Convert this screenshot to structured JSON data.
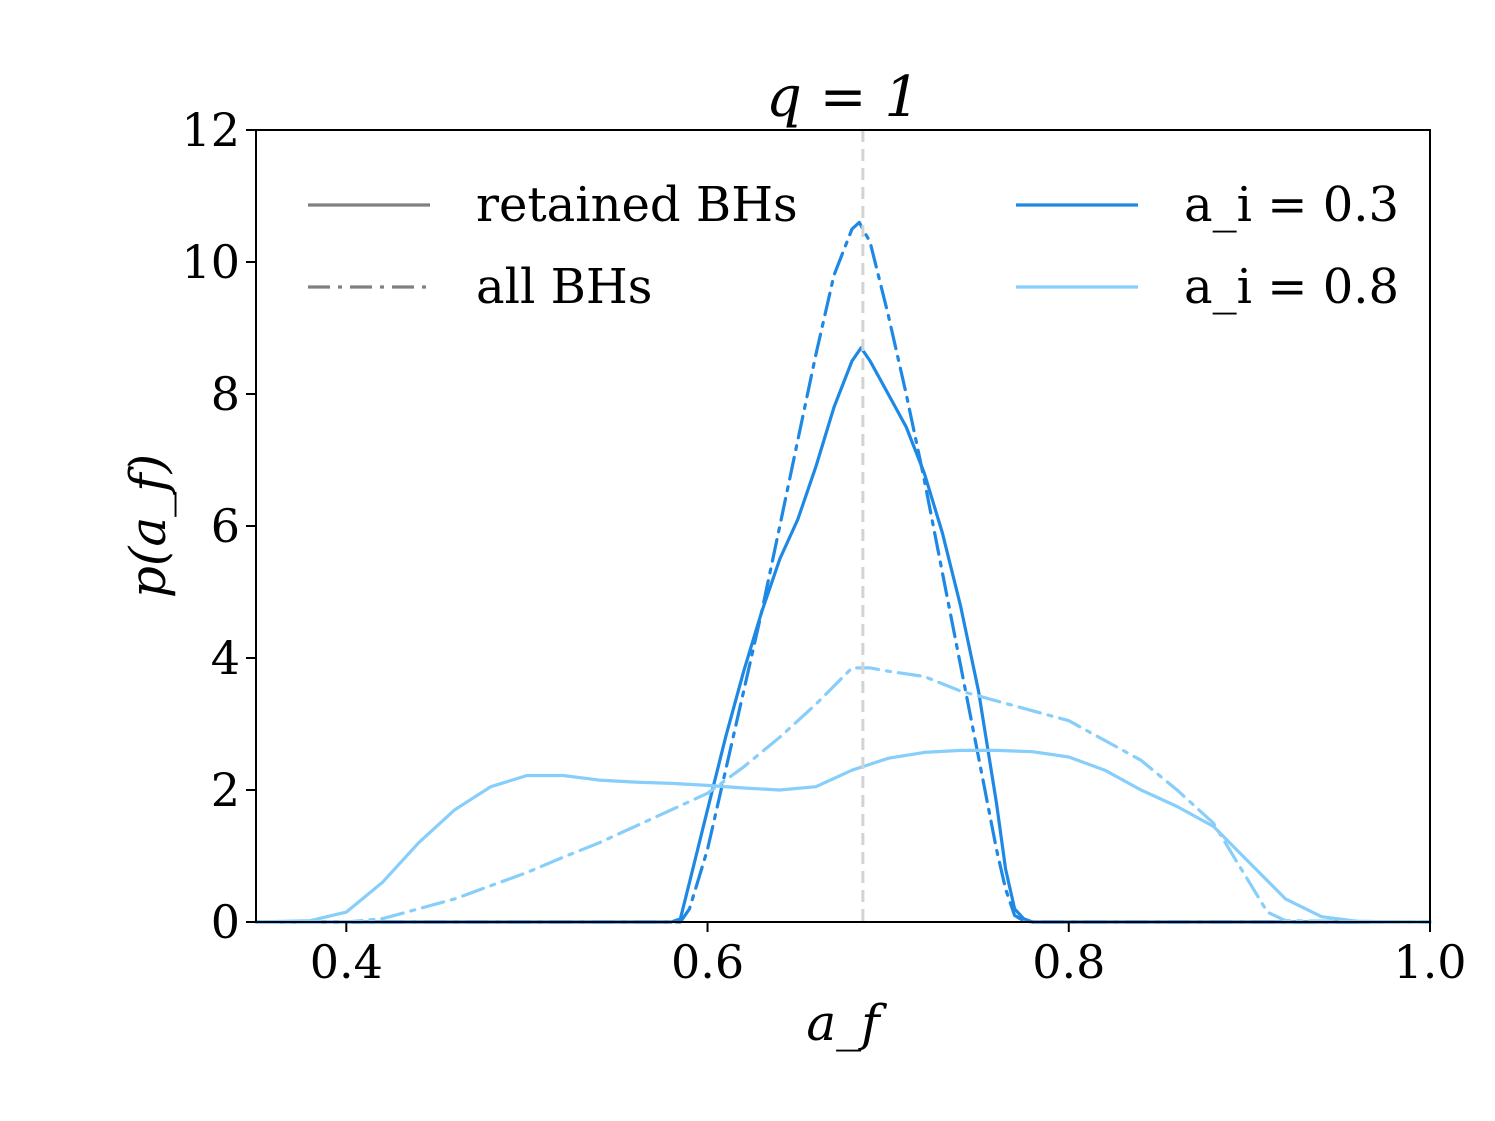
{
  "chart_data": {
    "type": "line",
    "title": "q = 1",
    "xlabel": "a_f",
    "ylabel": "p(a_f)",
    "xlim": [
      0.35,
      1.0
    ],
    "ylim": [
      0,
      12
    ],
    "xticks": [
      0.4,
      0.6,
      0.8,
      1.0
    ],
    "xtick_labels": [
      "0.4",
      "0.6",
      "0.8",
      "1.0"
    ],
    "yticks": [
      0,
      2,
      4,
      6,
      8,
      10,
      12
    ],
    "ytick_labels": [
      "0",
      "2",
      "4",
      "6",
      "8",
      "10",
      "12"
    ],
    "grid": false,
    "reference_line": {
      "x": 0.686,
      "style": "dashed",
      "color": "#d3d3d3"
    },
    "legend_style": {
      "position": "top-left",
      "entries": [
        {
          "label": "retained BHs",
          "linestyle": "solid",
          "color": "#808080"
        },
        {
          "label": "all BHs",
          "linestyle": "dashdot",
          "color": "#808080"
        }
      ]
    },
    "legend_color": {
      "position": "top-right",
      "entries": [
        {
          "label": "a_i = 0.3",
          "color": "#1E88E5"
        },
        {
          "label": "a_i = 0.8",
          "color": "#87CEFA"
        }
      ]
    },
    "series": [
      {
        "name": "a_i = 0.3 retained BHs",
        "color": "#1E88E5",
        "linestyle": "solid",
        "x": [
          0.35,
          0.58,
          0.585,
          0.59,
          0.6,
          0.61,
          0.62,
          0.63,
          0.64,
          0.65,
          0.66,
          0.67,
          0.68,
          0.685,
          0.69,
          0.7,
          0.71,
          0.72,
          0.73,
          0.74,
          0.75,
          0.76,
          0.765,
          0.77,
          0.775,
          0.78,
          0.79,
          1.0
        ],
        "y": [
          0,
          0,
          0.05,
          0.6,
          1.7,
          2.8,
          3.8,
          4.7,
          5.5,
          6.1,
          6.9,
          7.8,
          8.5,
          8.7,
          8.5,
          8.0,
          7.5,
          6.8,
          5.9,
          4.8,
          3.5,
          1.8,
          0.8,
          0.2,
          0.05,
          0,
          0,
          0
        ]
      },
      {
        "name": "a_i = 0.3 all BHs",
        "color": "#1E88E5",
        "linestyle": "dashdot",
        "x": [
          0.35,
          0.585,
          0.59,
          0.6,
          0.61,
          0.62,
          0.63,
          0.64,
          0.65,
          0.66,
          0.67,
          0.68,
          0.684,
          0.69,
          0.7,
          0.71,
          0.72,
          0.73,
          0.74,
          0.75,
          0.76,
          0.765,
          0.77,
          0.775,
          0.78,
          1.0
        ],
        "y": [
          0,
          0,
          0.2,
          1.1,
          2.3,
          3.5,
          4.7,
          6.0,
          7.3,
          8.6,
          9.8,
          10.5,
          10.6,
          10.3,
          9.2,
          8.0,
          6.7,
          5.3,
          3.9,
          2.5,
          1.1,
          0.5,
          0.1,
          0.02,
          0,
          0
        ]
      },
      {
        "name": "a_i = 0.8 retained BHs",
        "color": "#87CEFA",
        "linestyle": "solid",
        "x": [
          0.35,
          0.38,
          0.4,
          0.42,
          0.44,
          0.46,
          0.48,
          0.5,
          0.52,
          0.54,
          0.56,
          0.58,
          0.6,
          0.62,
          0.64,
          0.66,
          0.68,
          0.7,
          0.72,
          0.74,
          0.76,
          0.78,
          0.8,
          0.82,
          0.84,
          0.86,
          0.88,
          0.9,
          0.92,
          0.94,
          0.96,
          0.98,
          1.0
        ],
        "y": [
          0,
          0.02,
          0.15,
          0.6,
          1.2,
          1.7,
          2.05,
          2.22,
          2.22,
          2.15,
          2.12,
          2.1,
          2.07,
          2.03,
          2.0,
          2.05,
          2.3,
          2.48,
          2.57,
          2.6,
          2.6,
          2.58,
          2.5,
          2.3,
          2.0,
          1.75,
          1.45,
          0.9,
          0.35,
          0.08,
          0.01,
          0,
          0
        ]
      },
      {
        "name": "a_i = 0.8 all BHs",
        "color": "#87CEFA",
        "linestyle": "dashdot",
        "x": [
          0.35,
          0.4,
          0.42,
          0.44,
          0.46,
          0.48,
          0.5,
          0.52,
          0.54,
          0.56,
          0.58,
          0.6,
          0.62,
          0.64,
          0.66,
          0.68,
          0.69,
          0.7,
          0.72,
          0.74,
          0.76,
          0.78,
          0.8,
          0.82,
          0.84,
          0.86,
          0.88,
          0.9,
          0.91,
          0.92,
          1.0
        ],
        "y": [
          0,
          0.0,
          0.05,
          0.2,
          0.35,
          0.55,
          0.75,
          0.98,
          1.2,
          1.45,
          1.7,
          1.95,
          2.35,
          2.8,
          3.3,
          3.85,
          3.85,
          3.8,
          3.72,
          3.5,
          3.35,
          3.2,
          3.05,
          2.75,
          2.45,
          2.0,
          1.5,
          0.6,
          0.15,
          0.02,
          0
        ]
      }
    ]
  }
}
